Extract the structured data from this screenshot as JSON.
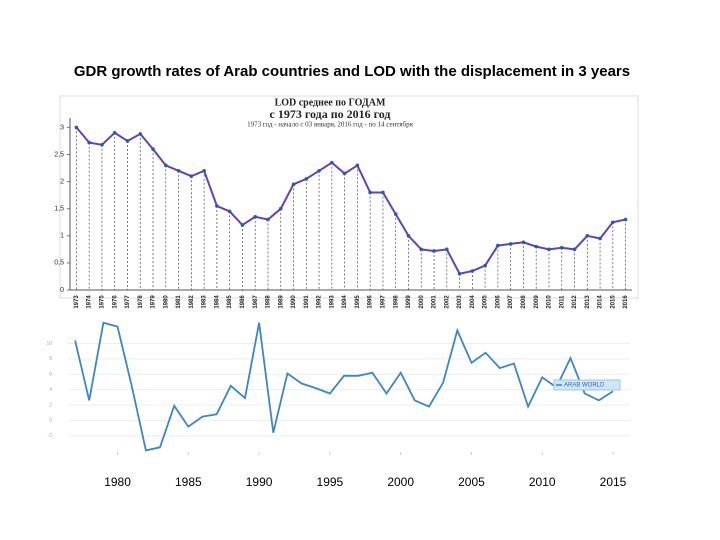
{
  "title": "GDR growth rates of Arab countries and LOD with the displacement in 3 years",
  "chart_data": [
    {
      "type": "line",
      "title": "LOD среднее по ГОДАМ",
      "subtitle": "с 1973 года по 2016 год",
      "note": "1973 год - начало с 03 января, 2016 год - по 14 сентября",
      "categories": [
        "1973",
        "1974",
        "1975",
        "1976",
        "1977",
        "1978",
        "1979",
        "1980",
        "1981",
        "1982",
        "1983",
        "1984",
        "1985",
        "1986",
        "1987",
        "1988",
        "1989",
        "1990",
        "1991",
        "1992",
        "1993",
        "1994",
        "1995",
        "1996",
        "1997",
        "1998",
        "1999",
        "2000",
        "2001",
        "2002",
        "2003",
        "2004",
        "2005",
        "2006",
        "2007",
        "2008",
        "2009",
        "2010",
        "2011",
        "2012",
        "2013",
        "2014",
        "2015",
        "2016"
      ],
      "values": [
        3.0,
        2.72,
        2.68,
        2.9,
        2.75,
        2.88,
        2.6,
        2.3,
        2.2,
        2.1,
        2.2,
        1.55,
        1.45,
        1.2,
        1.35,
        1.3,
        1.5,
        1.95,
        2.05,
        2.2,
        2.35,
        2.15,
        2.3,
        1.8,
        1.8,
        1.4,
        1.0,
        0.75,
        0.72,
        0.75,
        0.3,
        0.35,
        0.45,
        0.82,
        0.85,
        0.88,
        0.8,
        0.75,
        0.78,
        0.75,
        1.0,
        0.95,
        1.25,
        1.3
      ],
      "color": "#6a3fb0",
      "ylim": [
        0,
        3.1
      ],
      "yticks": [
        0,
        {
          "value": 0.5,
          "label": "0,5"
        },
        1,
        {
          "value": 1.5,
          "label": "1,5"
        },
        2,
        {
          "value": 2.5,
          "label": "2,5"
        },
        3
      ]
    },
    {
      "type": "line",
      "x": [
        1977,
        1978,
        1979,
        1980,
        1981,
        1982,
        1983,
        1984,
        1985,
        1986,
        1987,
        1988,
        1989,
        1990,
        1991,
        1992,
        1993,
        1994,
        1995,
        1996,
        1997,
        1998,
        1999,
        2000,
        2001,
        2002,
        2003,
        2004,
        2005,
        2006,
        2007,
        2008,
        2009,
        2010,
        2011,
        2012,
        2013,
        2014,
        2015
      ],
      "series": [
        {
          "name": "ARAB WORLD",
          "color": "#3b86c6",
          "values": [
            10.4,
            2.6,
            12.7,
            12.2,
            4.5,
            -3.9,
            -3.5,
            1.9,
            -0.8,
            0.5,
            0.8,
            4.5,
            2.9,
            12.7,
            -1.6,
            6.1,
            4.8,
            4.2,
            3.5,
            5.8,
            5.8,
            6.2,
            3.5,
            6.2,
            2.6,
            1.8,
            4.9,
            11.7,
            7.5,
            8.8,
            6.8,
            7.4,
            1.8,
            5.6,
            4.3,
            8.1,
            3.5,
            2.6,
            3.8
          ]
        }
      ],
      "xlim": [
        1976.5,
        2016.2
      ],
      "ylim": [
        -4.5,
        12.8
      ],
      "xticks": [
        1980,
        1985,
        1990,
        1995,
        2000,
        2005,
        2010,
        2015
      ],
      "yticks": [
        -2,
        0,
        2,
        4,
        6,
        8,
        10
      ],
      "grid": true
    }
  ]
}
